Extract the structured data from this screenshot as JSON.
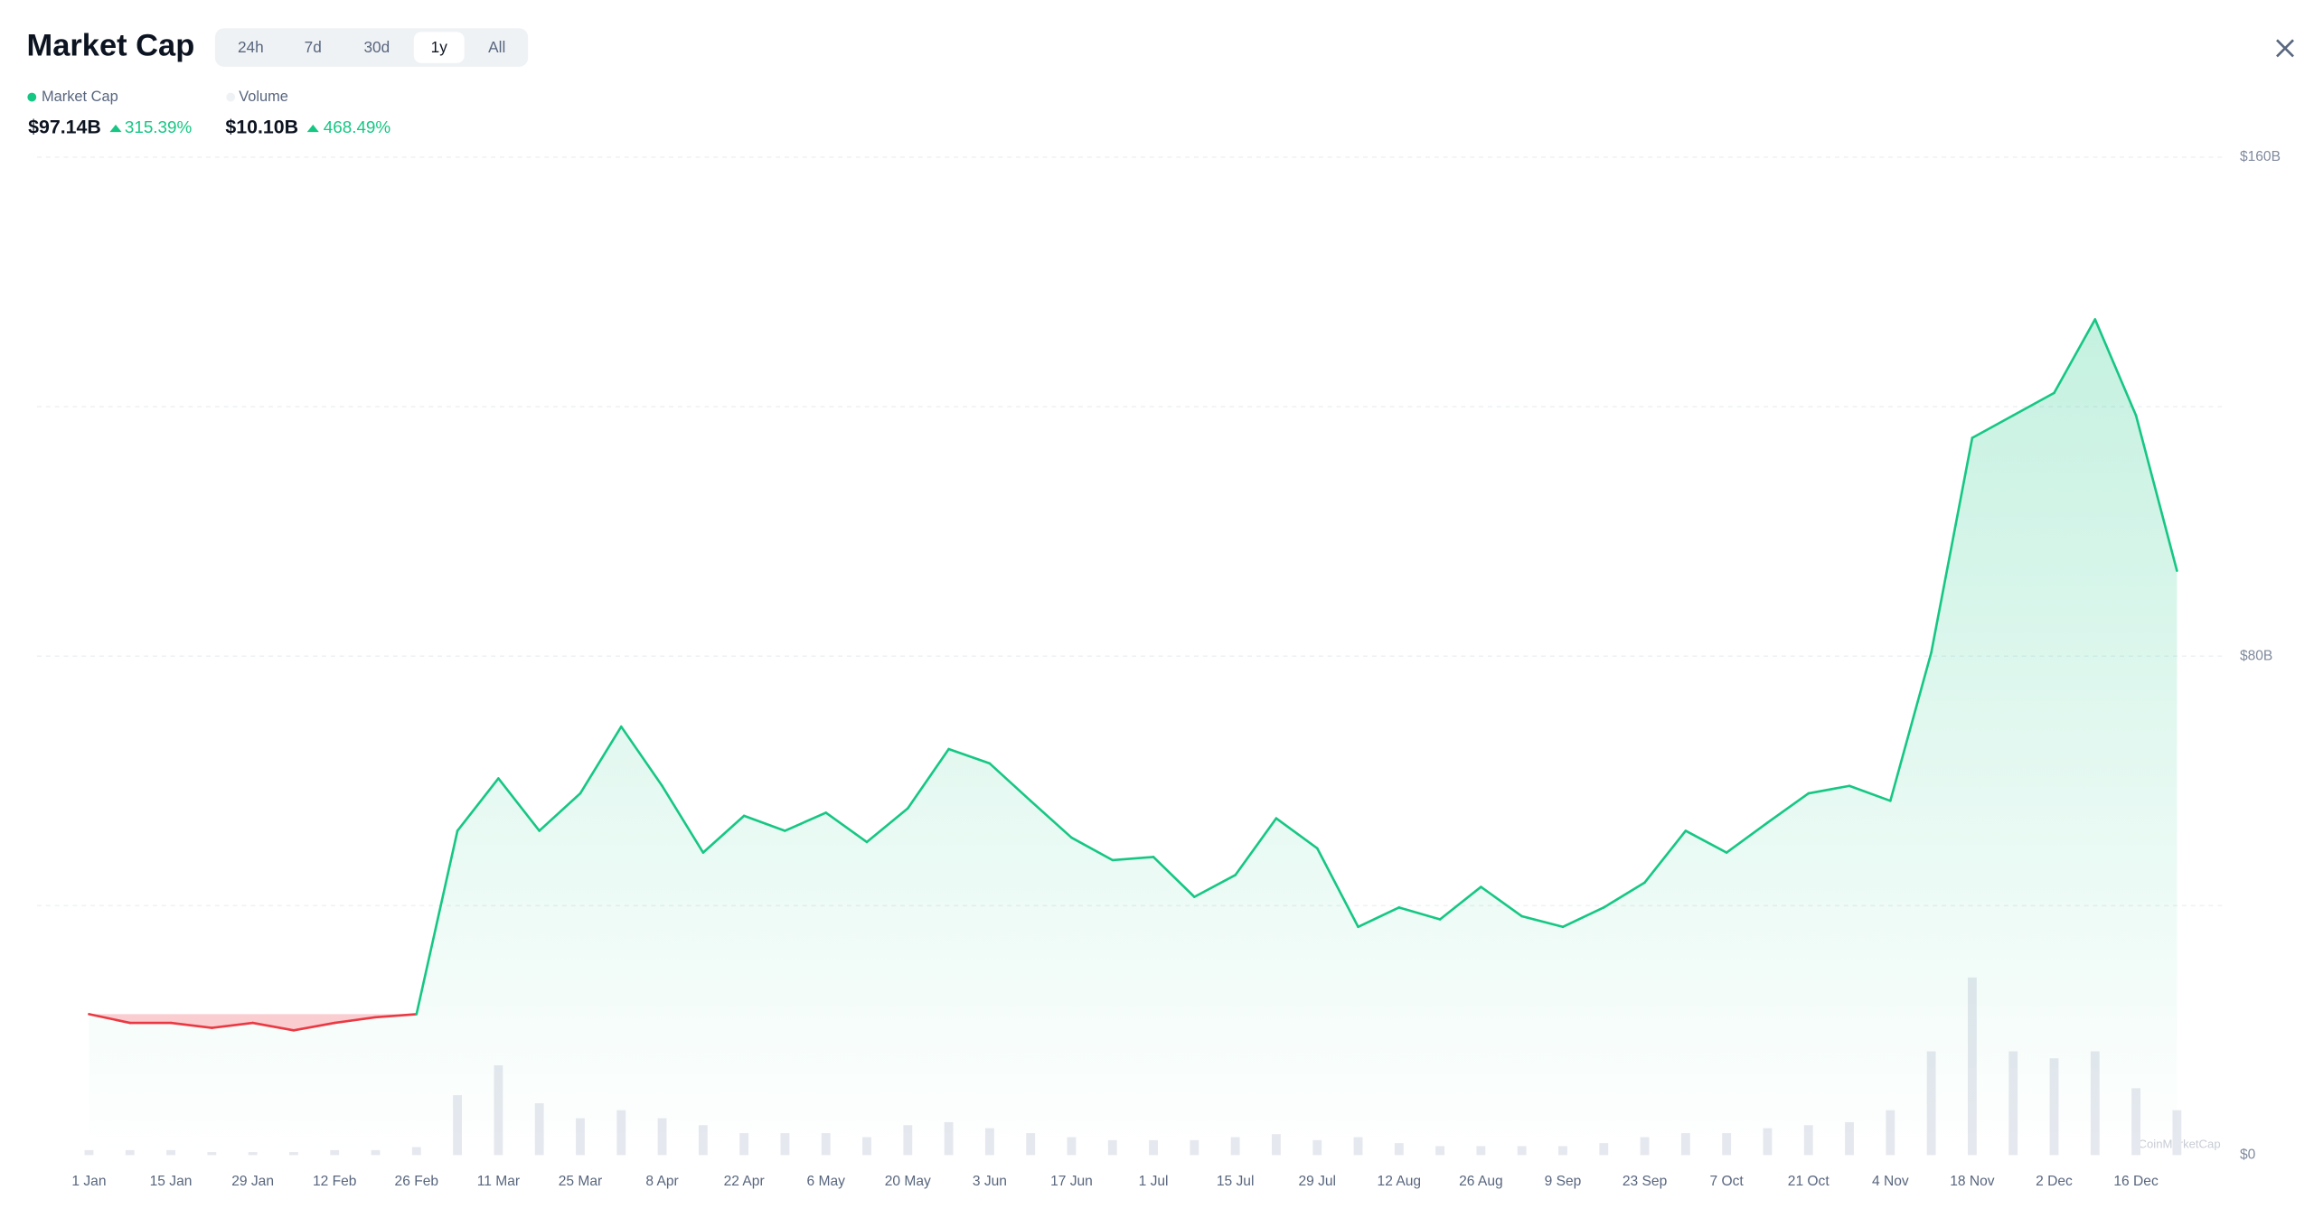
{
  "header": {
    "title": "Market Cap",
    "tabs": [
      "24h",
      "7d",
      "30d",
      "1y",
      "All"
    ],
    "active_tab": 3
  },
  "chart_data": {
    "type": "line",
    "x": [
      "1 Jan",
      "8 Jan",
      "15 Jan",
      "22 Jan",
      "29 Jan",
      "5 Feb",
      "12 Feb",
      "19 Feb",
      "26 Feb",
      "4 Mar",
      "11 Mar",
      "18 Mar",
      "25 Mar",
      "1 Apr",
      "8 Apr",
      "15 Apr",
      "22 Apr",
      "29 Apr",
      "6 May",
      "13 May",
      "20 May",
      "27 May",
      "3 Jun",
      "10 Jun",
      "17 Jun",
      "24 Jun",
      "1 Jul",
      "8 Jul",
      "15 Jul",
      "22 Jul",
      "29 Jul",
      "5 Aug",
      "12 Aug",
      "19 Aug",
      "26 Aug",
      "2 Sep",
      "9 Sep",
      "16 Sep",
      "23 Sep",
      "30 Sep",
      "7 Oct",
      "14 Oct",
      "21 Oct",
      "28 Oct",
      "4 Nov",
      "11 Nov",
      "18 Nov",
      "25 Nov",
      "2 Dec",
      "9 Dec",
      "16 Dec",
      "23 Dec"
    ],
    "xticks": [
      "1 Jan",
      "15 Jan",
      "29 Jan",
      "12 Feb",
      "26 Feb",
      "11 Mar",
      "25 Mar",
      "8 Apr",
      "22 Apr",
      "6 May",
      "20 May",
      "3 Jun",
      "17 Jun",
      "1 Jul",
      "15 Jul",
      "29 Jul",
      "12 Aug",
      "26 Aug",
      "9 Sep",
      "23 Sep",
      "7 Oct",
      "21 Oct",
      "4 Nov",
      "18 Nov",
      "2 Dec",
      "16 Dec"
    ],
    "series": [
      {
        "name": "Market Cap",
        "color": "#16c784",
        "below_color": "#ea3943",
        "values": [
          22.6,
          21.2,
          21.2,
          20.4,
          21.2,
          20.0,
          21.2,
          22.1,
          22.6,
          52,
          60.4,
          52,
          58,
          68.7,
          59.2,
          48.5,
          54.4,
          52,
          54.9,
          50.2,
          55.6,
          65.1,
          62.8,
          56.8,
          50.9,
          47.3,
          47.8,
          41.4,
          44.9,
          54,
          49.2,
          36.6,
          39.7,
          37.8,
          43,
          38.3,
          36.6,
          39.7,
          43.7,
          52,
          48.5,
          53.3,
          58,
          59.2,
          56.8,
          80.6,
          115,
          118.6,
          122.2,
          134,
          118.6,
          93.7
        ]
      },
      {
        "name": "Volume",
        "color": "#e6e8ef",
        "axis": "y2",
        "values": [
          0.5,
          0.5,
          0.5,
          0.3,
          0.3,
          0.3,
          0.5,
          0.5,
          0.8,
          6,
          9,
          5.2,
          3.7,
          4.5,
          3.7,
          3,
          2.2,
          2.2,
          2.2,
          1.8,
          3,
          3.3,
          2.7,
          2.2,
          1.8,
          1.5,
          1.5,
          1.5,
          1.8,
          2.1,
          1.5,
          1.8,
          1.2,
          0.9,
          0.9,
          0.9,
          0.9,
          1.2,
          1.8,
          2.2,
          2.2,
          2.7,
          3,
          3.3,
          4.5,
          10.4,
          17.8,
          10.4,
          9.7,
          10.4,
          6.7,
          4.5
        ]
      }
    ],
    "summary": [
      {
        "value": "$97.14B",
        "change": "315.39%"
      },
      {
        "value": "$10.10B",
        "change": "468.49%"
      }
    ],
    "ylim": [
      0,
      160
    ],
    "y2lim": [
      0,
      100
    ],
    "yticks": [
      {
        "value": 0,
        "label": "$0"
      },
      {
        "value": 80,
        "label": "$80B"
      },
      {
        "value": 160,
        "label": "$160B"
      }
    ],
    "gridlines": [
      40,
      80,
      120,
      160
    ],
    "watermark": "CoinMarketCap"
  }
}
